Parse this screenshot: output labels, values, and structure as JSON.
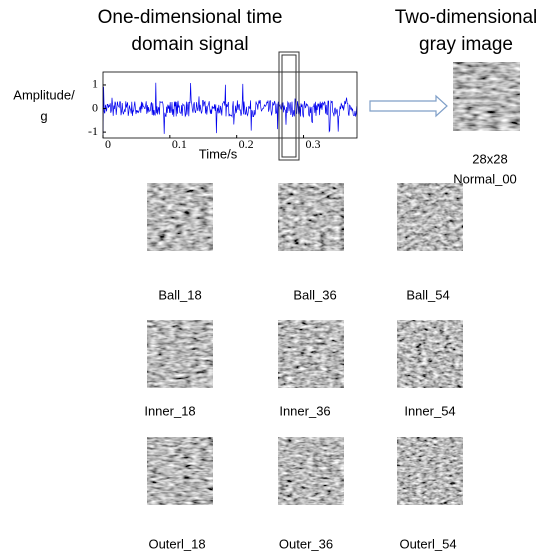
{
  "signal_panel": {
    "title_lines": [
      "One-dimensional time",
      "domain signal"
    ],
    "y_label_lines": [
      "Amplitude/",
      "g"
    ],
    "x_label": "Time/s",
    "xlim": [
      0,
      0.38
    ],
    "ylim": [
      -1.25,
      1.55
    ],
    "xticks": [
      0,
      0.1,
      0.2,
      0.3
    ],
    "yticks": [
      -1,
      0,
      1
    ]
  },
  "image_panel": {
    "title_lines": [
      "Two-dimensional",
      "gray image"
    ],
    "size_label": "28x28",
    "class_label": "Normal_00"
  },
  "grid": {
    "rows": [
      [
        "Ball_18",
        "Ball_36",
        "Ball_54"
      ],
      [
        "Inner_18",
        "Inner_36",
        "Inner_54"
      ],
      [
        "Outerl_18",
        "Outer_36",
        "Outerl_54"
      ]
    ]
  }
}
